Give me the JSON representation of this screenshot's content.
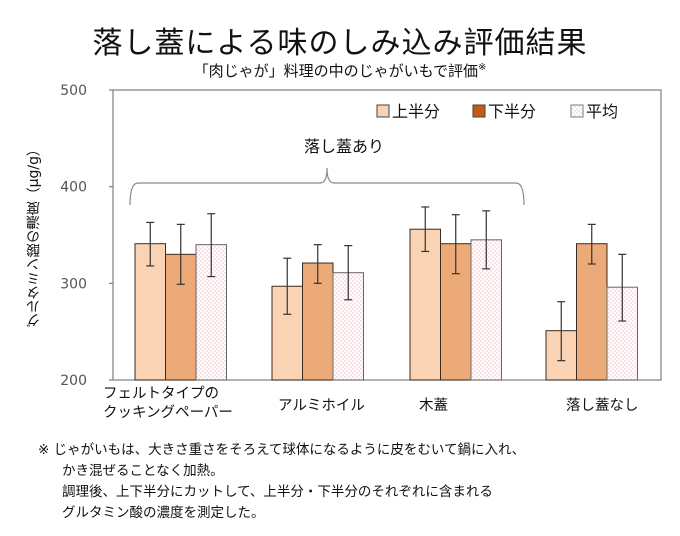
{
  "chart_data": {
    "type": "bar",
    "title": "落し蓋による味のしみ込み評価結果",
    "subtitle": "「肉じゃが」料理の中のじゃがいもで評価",
    "subtitle_mark": "※",
    "ylabel": "グルタミン酸の濃度（μg/g）",
    "xlabel": "",
    "ylim": [
      200,
      500
    ],
    "yticks": [
      200,
      300,
      400,
      500
    ],
    "ytick_labels": [
      "200",
      "300",
      "400",
      "500"
    ],
    "categories": [
      "フェルトタイプの\nクッキングペーパー",
      "アルミホイル",
      "木蓋",
      "落し蓋なし"
    ],
    "category_lines": [
      [
        "フェルトタイプの",
        "クッキングペーパー"
      ],
      [
        "アルミホイル"
      ],
      [
        "木蓋"
      ],
      [
        "落し蓋なし"
      ]
    ],
    "series": [
      {
        "name": "上半分",
        "values": [
          341,
          297,
          356,
          251
        ],
        "err_low": [
          318,
          268,
          333,
          220
        ],
        "err_high": [
          363,
          326,
          379,
          281
        ]
      },
      {
        "name": "下半分",
        "values": [
          330,
          321,
          341,
          341
        ],
        "err_low": [
          299,
          300,
          310,
          320
        ],
        "err_high": [
          361,
          340,
          371,
          361
        ]
      },
      {
        "name": "平均",
        "values": [
          340,
          311,
          345,
          296
        ],
        "err_low": [
          307,
          283,
          315,
          261
        ],
        "err_high": [
          372,
          339,
          375,
          330
        ]
      }
    ],
    "legend_position": "top-right",
    "annotation": {
      "text": "落し蓋あり",
      "spans_categories": [
        0,
        1,
        2
      ]
    },
    "grid": false
  },
  "colors": {
    "upper": "#FAD3B4",
    "lower": "#EBAA78",
    "lower_legend": "#C55A11",
    "average_bg": "#FFFFFF",
    "average_dot": "#F2B8C6",
    "axis": "#7F7F7F",
    "bar_edge": "#3A2A20"
  },
  "note": {
    "mark": "※",
    "lines": [
      "じゃがいもは、大きさ重さをそろえて球体になるように皮をむいて鍋に入れ、",
      "かき混ぜることなく加熱。",
      "調理後、上下半分にカットして、上半分・下半分のそれぞれに含まれる",
      "グルタミン酸の濃度を測定した。"
    ]
  }
}
